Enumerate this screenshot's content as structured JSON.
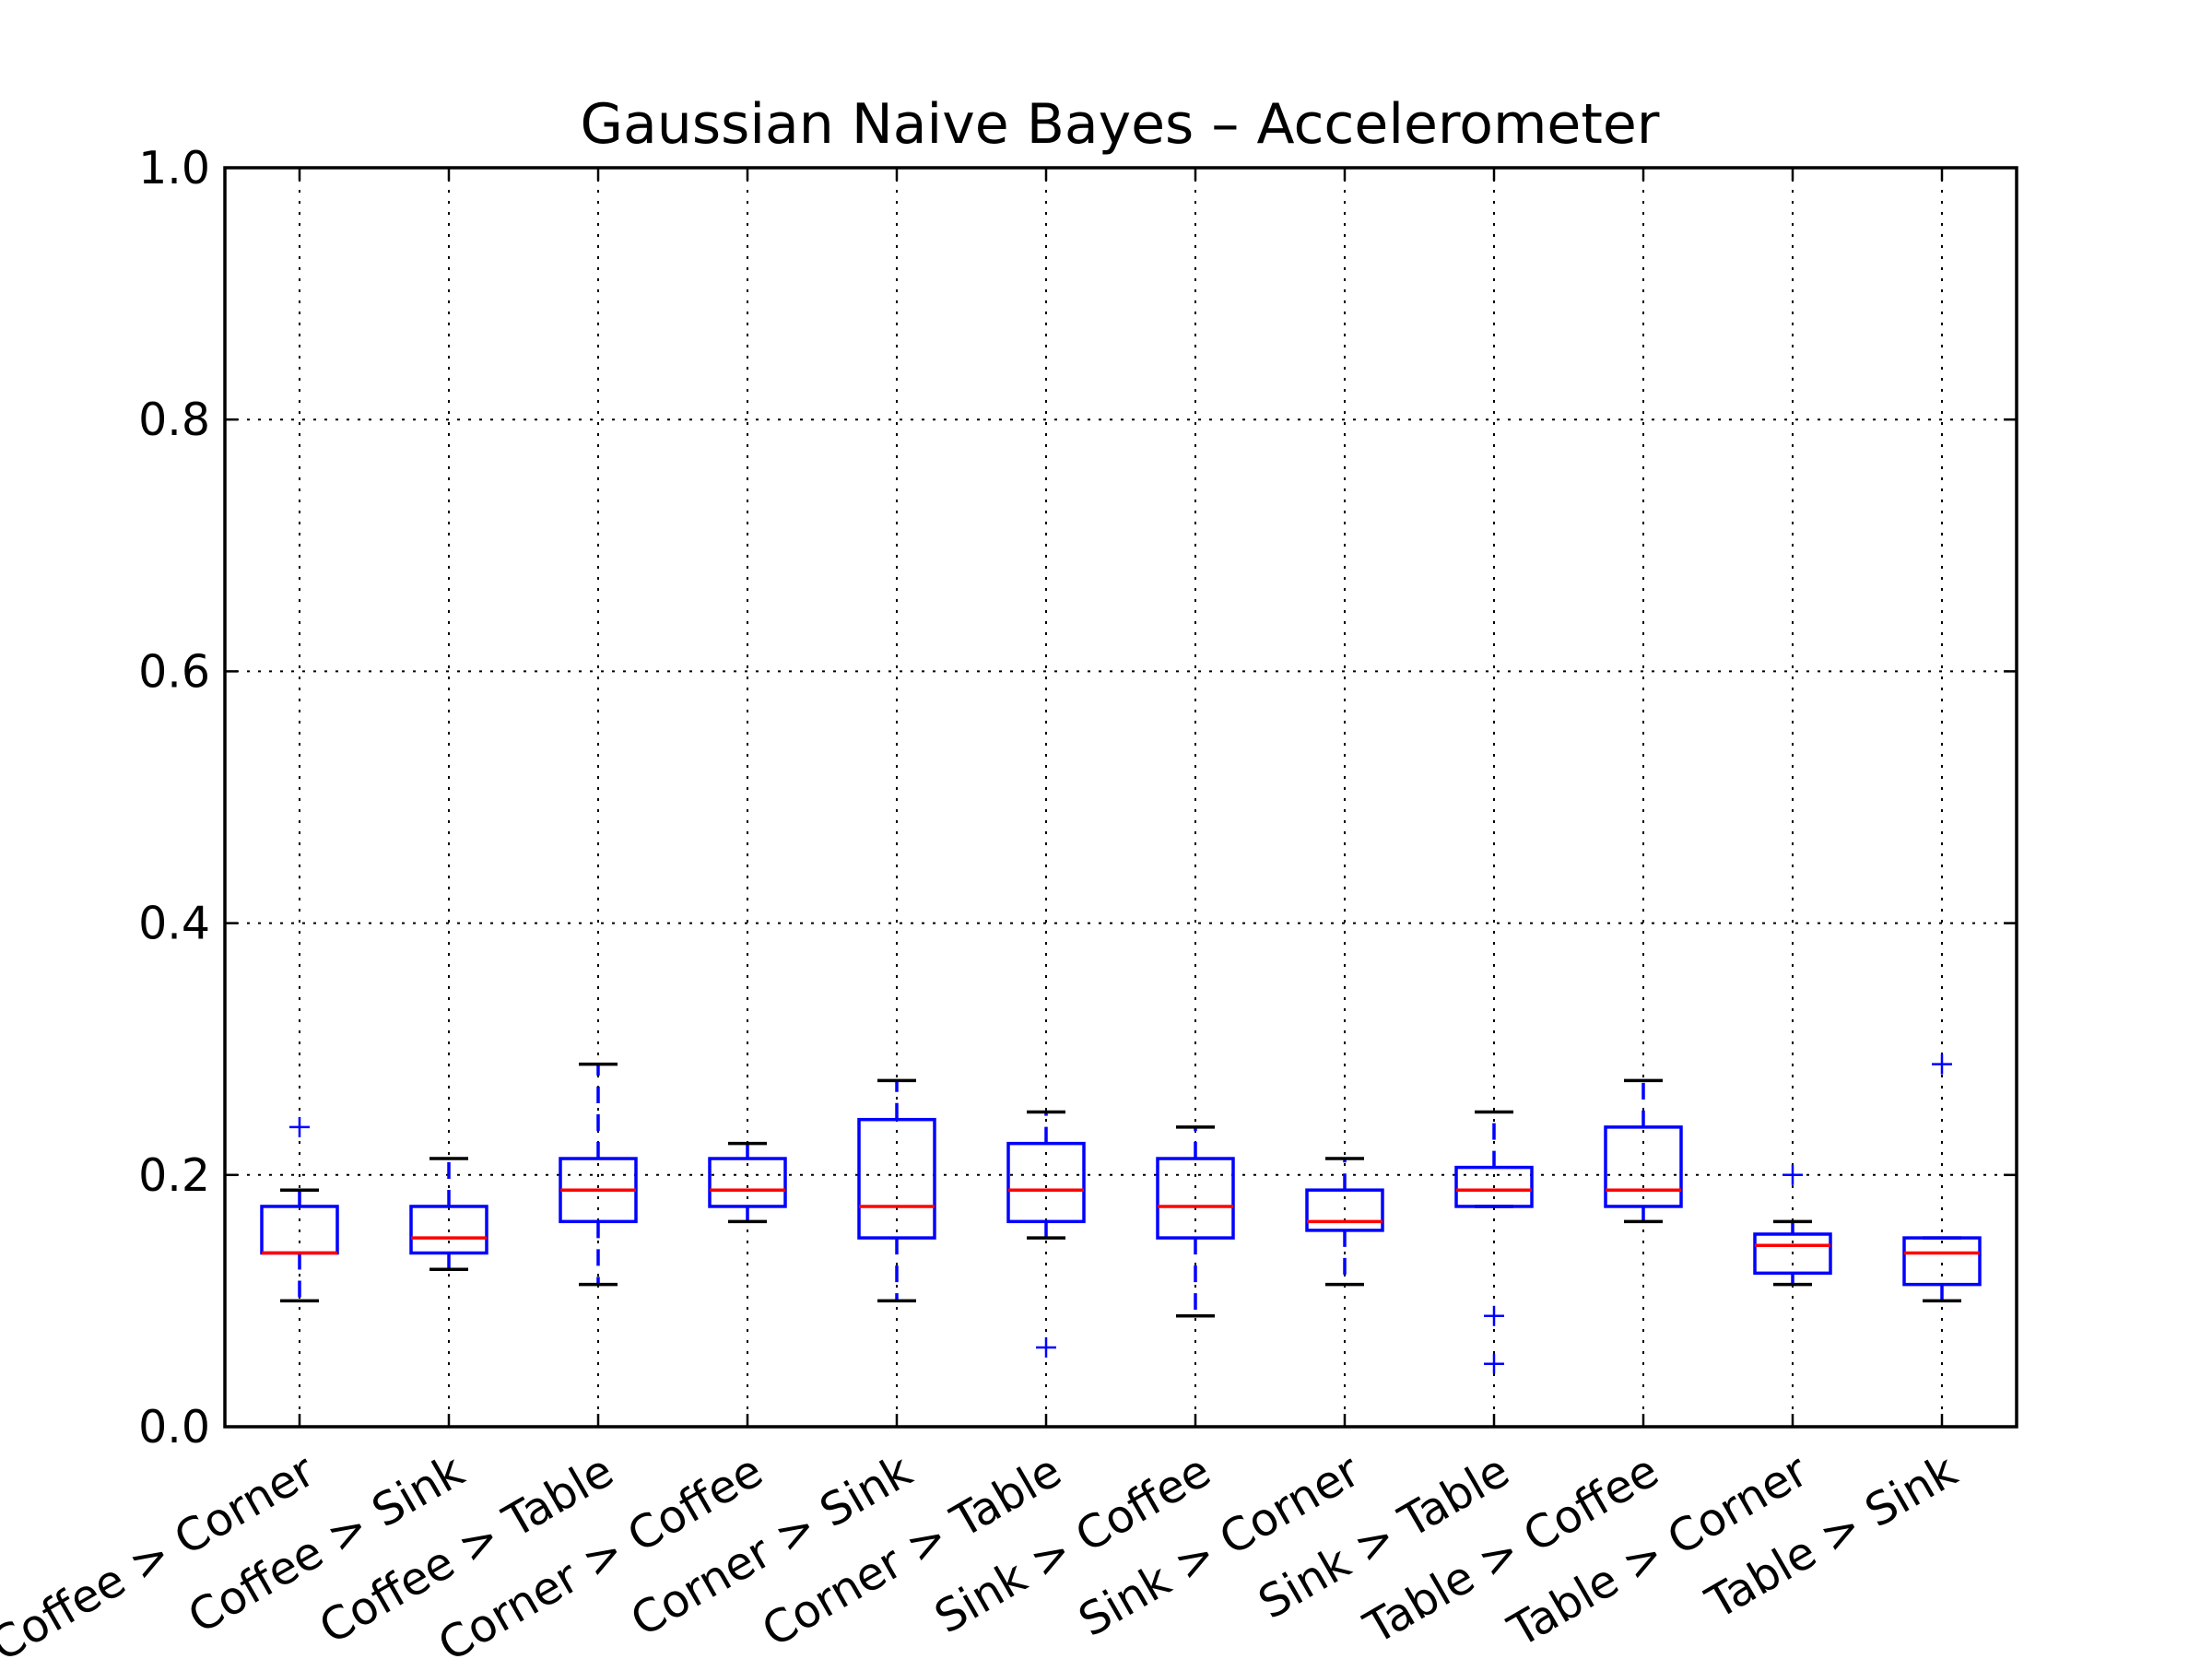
{
  "chart_data": {
    "type": "boxplot",
    "title": "Gaussian Naive Bayes – Accelerometer",
    "xlabel": "",
    "ylabel": "",
    "ylim": [
      0.0,
      1.0
    ],
    "yticks": [
      0.0,
      0.2,
      0.4,
      0.6,
      0.8,
      1.0
    ],
    "ytick_labels": [
      "0.0",
      "0.2",
      "0.4",
      "0.6",
      "0.8",
      "1.0"
    ],
    "grid": true,
    "colors": {
      "box": "#0000ff",
      "median": "#ff0000",
      "cap": "#000000",
      "flier": "#0000ff"
    },
    "categories": [
      "Coffee > Corner",
      "Coffee > Sink",
      "Coffee > Table",
      "Corner > Coffee",
      "Corner > Sink",
      "Corner > Table",
      "Sink > Coffee",
      "Sink > Corner",
      "Sink > Table",
      "Table > Coffee",
      "Table > Corner",
      "Table > Sink"
    ],
    "boxes": [
      {
        "whislo": 0.1,
        "q1": 0.138,
        "med": 0.138,
        "q3": 0.175,
        "whishi": 0.188,
        "fliers": [
          0.238
        ]
      },
      {
        "whislo": 0.125,
        "q1": 0.138,
        "med": 0.15,
        "q3": 0.175,
        "whishi": 0.213,
        "fliers": []
      },
      {
        "whislo": 0.113,
        "q1": 0.163,
        "med": 0.188,
        "q3": 0.213,
        "whishi": 0.288,
        "fliers": []
      },
      {
        "whislo": 0.163,
        "q1": 0.175,
        "med": 0.188,
        "q3": 0.213,
        "whishi": 0.225,
        "fliers": []
      },
      {
        "whislo": 0.1,
        "q1": 0.15,
        "med": 0.175,
        "q3": 0.244,
        "whishi": 0.275,
        "fliers": []
      },
      {
        "whislo": 0.15,
        "q1": 0.163,
        "med": 0.188,
        "q3": 0.225,
        "whishi": 0.25,
        "fliers": [
          0.063
        ]
      },
      {
        "whislo": 0.088,
        "q1": 0.15,
        "med": 0.175,
        "q3": 0.213,
        "whishi": 0.238,
        "fliers": []
      },
      {
        "whislo": 0.113,
        "q1": 0.156,
        "med": 0.163,
        "q3": 0.188,
        "whishi": 0.213,
        "fliers": []
      },
      {
        "whislo": 0.175,
        "q1": 0.175,
        "med": 0.188,
        "q3": 0.206,
        "whishi": 0.25,
        "fliers": [
          0.088,
          0.05
        ]
      },
      {
        "whislo": 0.163,
        "q1": 0.175,
        "med": 0.188,
        "q3": 0.238,
        "whishi": 0.275,
        "fliers": []
      },
      {
        "whislo": 0.113,
        "q1": 0.122,
        "med": 0.144,
        "q3": 0.153,
        "whishi": 0.163,
        "fliers": [
          0.2
        ]
      },
      {
        "whislo": 0.1,
        "q1": 0.113,
        "med": 0.138,
        "q3": 0.15,
        "whishi": 0.15,
        "fliers": [
          0.288
        ]
      }
    ]
  }
}
